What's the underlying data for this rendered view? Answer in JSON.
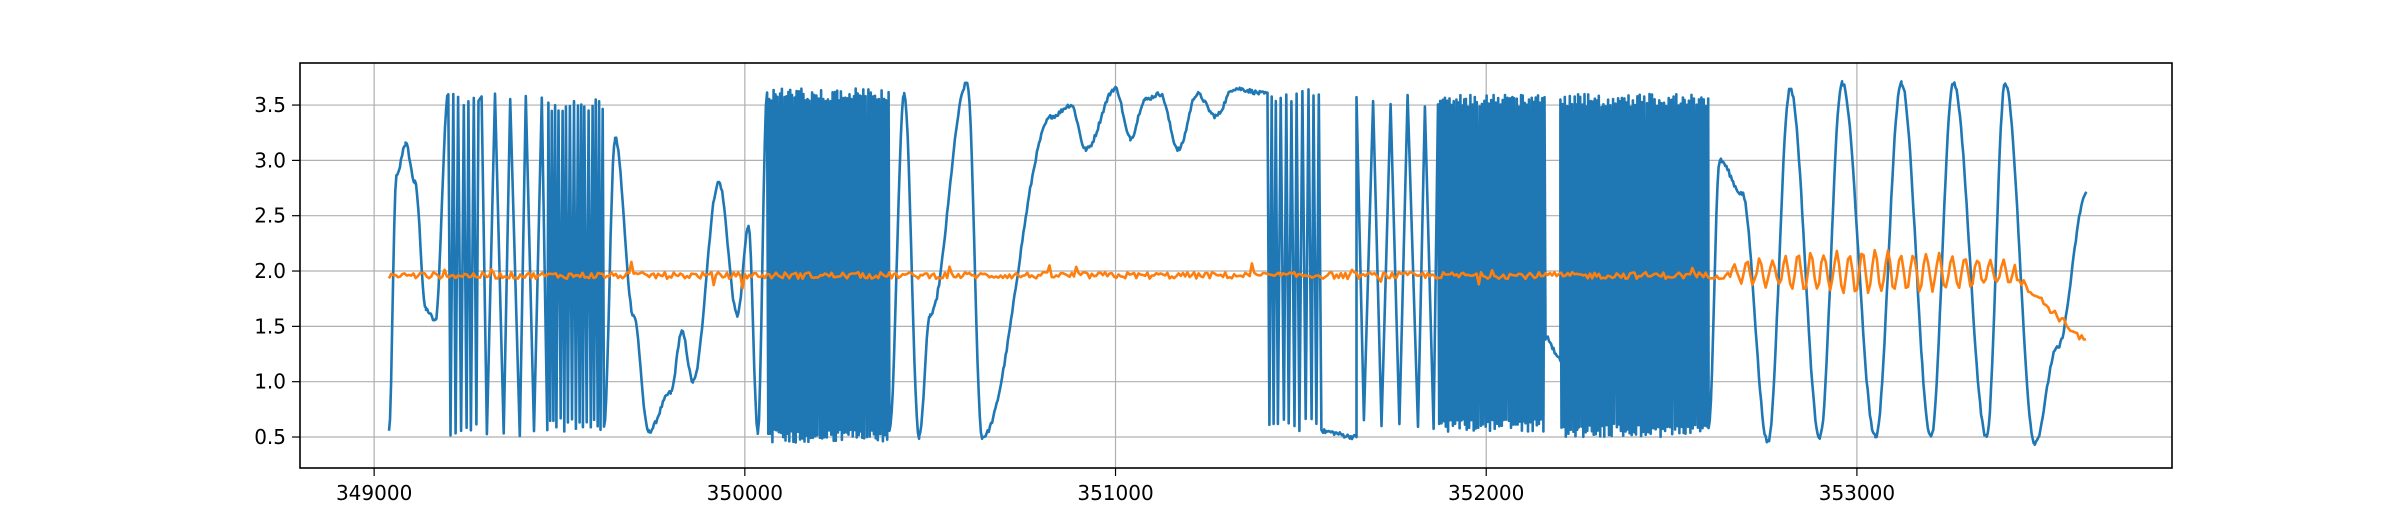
{
  "chart_data": {
    "type": "line",
    "title": "",
    "xlabel": "",
    "ylabel": "",
    "xlim": [
      348800,
      353850
    ],
    "ylim": [
      0.22,
      3.88
    ],
    "grid": true,
    "xticks": [
      349000,
      350000,
      351000,
      352000,
      353000
    ],
    "yticks": [
      0.5,
      1.0,
      1.5,
      2.0,
      2.5,
      3.0,
      3.5
    ],
    "xtick_labels": [
      "349000",
      "350000",
      "351000",
      "352000",
      "353000"
    ],
    "ytick_labels": [
      "0.5",
      "1.0",
      "1.5",
      "2.0",
      "2.5",
      "3.0",
      "3.5"
    ],
    "series": [
      {
        "color": "#1f77b4",
        "x_range": [
          349040,
          353620
        ],
        "description_points": [
          [
            349040,
            0.55
          ],
          [
            349060,
            2.9
          ],
          [
            349080,
            3.15
          ],
          [
            349100,
            3.0
          ],
          [
            349120,
            2.2
          ],
          [
            349140,
            1.6
          ],
          [
            349160,
            1.75
          ],
          [
            349180,
            2.6
          ],
          [
            349200,
            3.6
          ],
          [
            349280,
            3.6
          ],
          [
            349300,
            0.5
          ],
          [
            349330,
            2.3
          ],
          [
            349350,
            0.5
          ],
          [
            349380,
            3.65
          ],
          [
            349400,
            0.45
          ],
          [
            349430,
            3.7
          ],
          [
            349450,
            0.45
          ],
          [
            349470,
            3.6
          ],
          [
            349600,
            3.55
          ],
          [
            349620,
            0.55
          ],
          [
            349650,
            3.2
          ],
          [
            349700,
            1.6
          ],
          [
            349740,
            0.55
          ],
          [
            349800,
            0.9
          ],
          [
            349830,
            1.45
          ],
          [
            349860,
            1.0
          ],
          [
            349900,
            2.3
          ],
          [
            349930,
            2.8
          ],
          [
            349950,
            2.5
          ],
          [
            349980,
            1.6
          ],
          [
            350010,
            2.4
          ],
          [
            350030,
            0.6
          ],
          [
            350060,
            3.6
          ],
          [
            350380,
            3.6
          ],
          [
            350400,
            0.55
          ],
          [
            350460,
            3.65
          ],
          [
            350500,
            0.5
          ],
          [
            350560,
            0.9
          ],
          [
            350600,
            3.7
          ],
          [
            350640,
            0.5
          ],
          [
            350700,
            1.2
          ],
          [
            350760,
            2.2
          ],
          [
            350830,
            3.4
          ],
          [
            350880,
            3.5
          ],
          [
            350920,
            3.1
          ],
          [
            350960,
            3.6
          ],
          [
            351000,
            3.65
          ],
          [
            351040,
            3.2
          ],
          [
            351080,
            3.5
          ],
          [
            351120,
            3.6
          ],
          [
            351170,
            3.1
          ],
          [
            351220,
            3.6
          ],
          [
            351270,
            3.4
          ],
          [
            351320,
            3.65
          ],
          [
            351400,
            3.65
          ],
          [
            351420,
            0.6
          ],
          [
            351600,
            0.5
          ],
          [
            351650,
            0.55
          ],
          [
            351700,
            3.6
          ],
          [
            351800,
            3.6
          ],
          [
            351900,
            1.0
          ],
          [
            352000,
            3.5
          ],
          [
            352150,
            3.6
          ],
          [
            352200,
            1.2
          ],
          [
            352250,
            3.6
          ],
          [
            352600,
            0.55
          ],
          [
            352650,
            3.0
          ],
          [
            352700,
            2.6
          ],
          [
            352760,
            0.5
          ],
          [
            352820,
            3.65
          ],
          [
            352900,
            0.5
          ],
          [
            352960,
            3.7
          ],
          [
            353050,
            0.5
          ],
          [
            353120,
            3.7
          ],
          [
            353200,
            0.5
          ],
          [
            353260,
            3.7
          ],
          [
            353350,
            0.5
          ],
          [
            353400,
            3.7
          ],
          [
            353450,
            1.2
          ],
          [
            353480,
            0.45
          ],
          [
            353520,
            1.2
          ],
          [
            353560,
            1.7
          ],
          [
            353620,
            2.7
          ]
        ]
      },
      {
        "color": "#ff7f0e",
        "x_range": [
          349040,
          353620
        ],
        "description_points": [
          [
            349040,
            1.95
          ],
          [
            350000,
            1.96
          ],
          [
            351000,
            1.97
          ],
          [
            352000,
            1.96
          ],
          [
            352650,
            1.97
          ],
          [
            352800,
            2.0
          ],
          [
            353000,
            2.0
          ],
          [
            353420,
            1.98
          ],
          [
            353450,
            1.8
          ],
          [
            353500,
            1.55
          ],
          [
            353560,
            1.45
          ],
          [
            353620,
            1.36
          ]
        ]
      }
    ]
  }
}
